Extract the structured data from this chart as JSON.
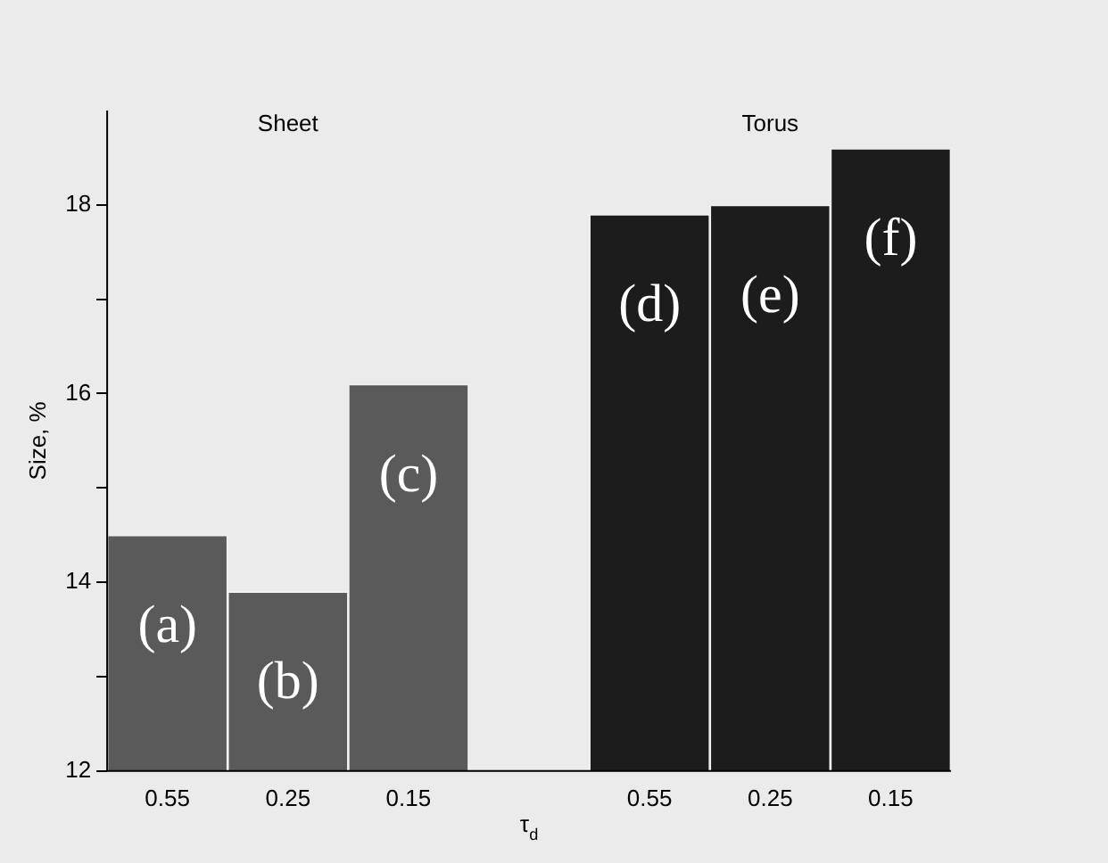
{
  "chart_data": {
    "type": "bar",
    "xlabel": "τ$_{d}$",
    "ylabel": "Size, %",
    "categories": [
      "0.55",
      "0.25",
      "0.15",
      null,
      "0.55",
      "0.25",
      "0.15"
    ],
    "values": [
      14.5,
      13.9,
      16.1,
      null,
      17.9,
      18.0,
      18.6
    ],
    "colors": [
      "#5a5a5a",
      "#5a5a5a",
      "#5a5a5a",
      "#5a5a5a",
      "#1c1c1c",
      "#1c1c1c",
      "#1c1c1c"
    ],
    "value_labels": [
      "(a)",
      "(b)",
      "(c)",
      null,
      "(d)",
      "(e)",
      "(f)"
    ],
    "annotations": [
      "Sheet",
      "Torus"
    ],
    "ylim": [
      12,
      19
    ],
    "yticks": [
      12,
      {
        "value": 13,
        "label": null
      },
      14,
      {
        "value": 15,
        "label": null
      },
      16,
      {
        "value": 17,
        "label": null
      },
      18
    ],
    "grid": false,
    "legend": false
  }
}
